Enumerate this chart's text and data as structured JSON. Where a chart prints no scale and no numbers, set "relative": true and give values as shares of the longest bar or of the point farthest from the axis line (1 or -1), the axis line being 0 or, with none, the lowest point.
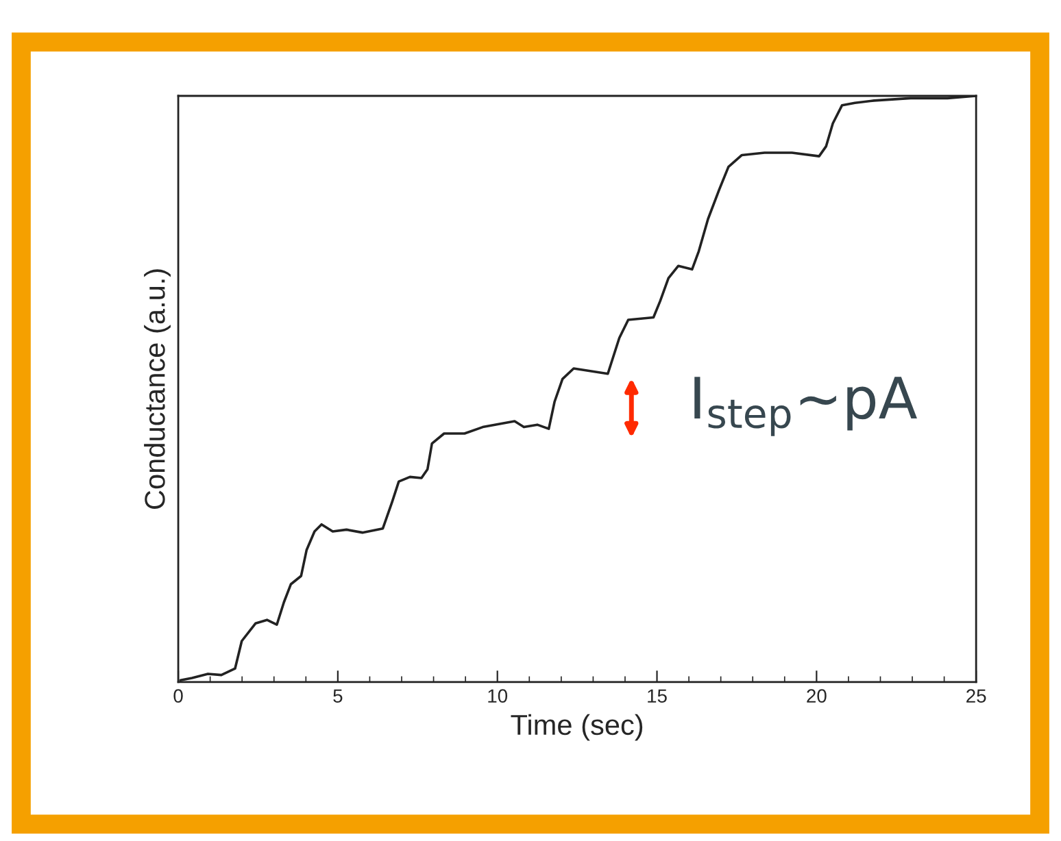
{
  "chart_data": {
    "type": "line",
    "xlabel": "Time (sec)",
    "ylabel": "Conductance (a.u.)",
    "relative": true,
    "xlim": [
      0,
      25
    ],
    "xticks": [
      0,
      5,
      10,
      15,
      20,
      25
    ],
    "grid": false,
    "annotations": [
      "I$_{step}$∼pA"
    ],
    "series": [
      {
        "color": "#222222",
        "x": [
          0.07,
          0.43,
          0.93,
          1.35,
          1.78,
          1.99,
          2.42,
          2.78,
          3.09,
          3.31,
          3.53,
          3.85,
          4.02,
          4.27,
          4.49,
          4.84,
          5.27,
          5.77,
          6.41,
          6.7,
          6.91,
          7.26,
          7.62,
          7.81,
          7.95,
          8.33,
          8.97,
          9.54,
          10.54,
          10.83,
          11.25,
          11.61,
          11.79,
          12.04,
          12.39,
          13.46,
          13.82,
          14.1,
          14.89,
          15.1,
          15.36,
          15.67,
          16.1,
          16.31,
          16.6,
          16.95,
          17.24,
          17.66,
          18.37,
          19.23,
          20.08,
          20.3,
          20.51,
          20.8,
          21.2,
          21.8,
          22.95,
          24.1,
          25
        ],
        "values": [
          0.003,
          0.007,
          0.014,
          0.012,
          0.023,
          0.07,
          0.1,
          0.106,
          0.098,
          0.136,
          0.167,
          0.181,
          0.225,
          0.257,
          0.269,
          0.257,
          0.26,
          0.255,
          0.262,
          0.307,
          0.342,
          0.35,
          0.348,
          0.363,
          0.407,
          0.424,
          0.424,
          0.435,
          0.445,
          0.435,
          0.439,
          0.432,
          0.478,
          0.517,
          0.535,
          0.526,
          0.587,
          0.618,
          0.622,
          0.65,
          0.689,
          0.71,
          0.704,
          0.735,
          0.79,
          0.84,
          0.879,
          0.899,
          0.903,
          0.903,
          0.897,
          0.914,
          0.953,
          0.984,
          0.988,
          0.992,
          0.996,
          0.996,
          1.0
        ]
      }
    ]
  }
}
